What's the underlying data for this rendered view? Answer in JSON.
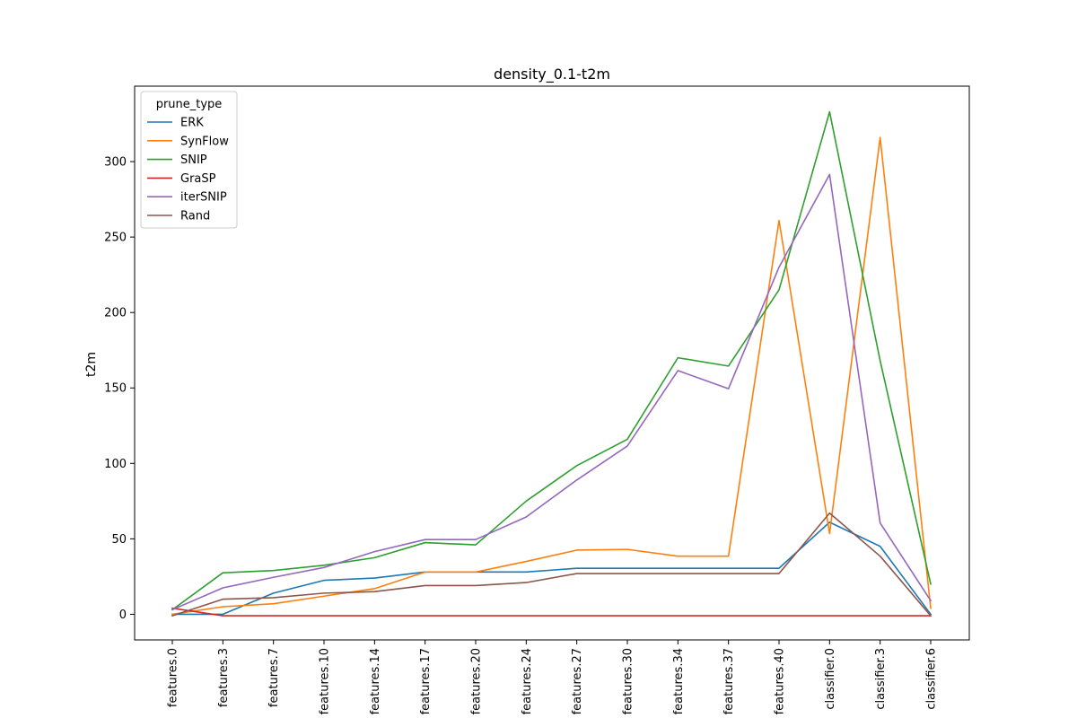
{
  "chart_data": {
    "type": "line",
    "title": "density_0.1-t2m",
    "xlabel": "",
    "ylabel": "t2m",
    "categories": [
      "features.0",
      "features.3",
      "features.7",
      "features.10",
      "features.14",
      "features.17",
      "features.20",
      "features.24",
      "features.27",
      "features.30",
      "features.34",
      "features.37",
      "features.40",
      "classifier.0",
      "classifier.3",
      "classifier.6"
    ],
    "ylim": [
      -17,
      350
    ],
    "yticks": [
      0,
      50,
      100,
      150,
      200,
      250,
      300
    ],
    "grid": false,
    "legend": {
      "title": "prune_type",
      "placement": "top-left"
    },
    "series": [
      {
        "name": "ERK",
        "color": "#1f77b4",
        "values": [
          0,
          0,
          14,
          22.5,
          24,
          28,
          28,
          28,
          30.5,
          30.5,
          30.5,
          30.5,
          30.5,
          61,
          45,
          0
        ]
      },
      {
        "name": "SynFlow",
        "color": "#ff7f0e",
        "values": [
          0,
          5,
          7,
          12,
          17,
          28,
          28,
          35,
          42.5,
          43,
          38.5,
          38.5,
          261,
          53.5,
          316,
          4
        ]
      },
      {
        "name": "SNIP",
        "color": "#2ca02c",
        "values": [
          3,
          27.5,
          29,
          32.5,
          37.5,
          47.5,
          46,
          75,
          98.5,
          116,
          170,
          164.5,
          215,
          333,
          168,
          20
        ]
      },
      {
        "name": "GraSP",
        "color": "#d62728",
        "values": [
          4,
          -1,
          -1,
          -1,
          -1,
          -1,
          -1,
          -1,
          -1,
          -1,
          -1,
          -1,
          -1,
          -1,
          -1,
          -1
        ]
      },
      {
        "name": "iterSNIP",
        "color": "#9467bd",
        "values": [
          3,
          17.5,
          24.5,
          31,
          41.5,
          49.5,
          49.5,
          64.5,
          89,
          111.5,
          161.5,
          149.5,
          230,
          291.5,
          60.5,
          9
        ]
      },
      {
        "name": "Rand",
        "color": "#8c564b",
        "values": [
          -1,
          10,
          11,
          14,
          15,
          19,
          19,
          21,
          27,
          27,
          27,
          27,
          27,
          67,
          38.5,
          -1
        ]
      }
    ]
  }
}
